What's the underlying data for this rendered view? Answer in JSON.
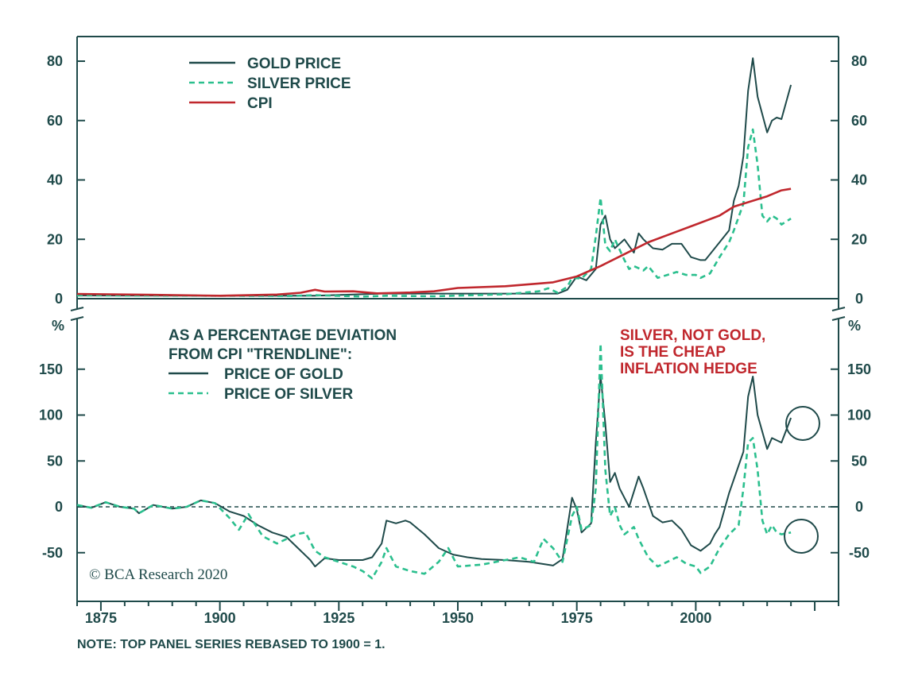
{
  "colors": {
    "axis": "#1f4a4a",
    "gold": "#1f4a4a",
    "silver": "#2bbf8e",
    "cpi": "#c0272d",
    "annotation": "#c0272d"
  },
  "note": "NOTE: TOP PANEL SERIES REBASED TO 1900 = 1.",
  "credit": "© BCA Research 2020",
  "chart_data": [
    {
      "type": "line",
      "xlim": [
        1870,
        2030
      ],
      "ylim": [
        0,
        85
      ],
      "yticks": [
        "0",
        "20",
        "40",
        "60",
        "80"
      ],
      "xticks": [
        "1875",
        "1900",
        "1925",
        "1950",
        "1975",
        "2000"
      ],
      "legend": [
        "GOLD PRICE",
        "SILVER PRICE",
        "CPI"
      ],
      "legend_position": "top-left",
      "series": [
        {
          "name": "GOLD PRICE",
          "style": "solid",
          "points": [
            [
              1870,
              1.1
            ],
            [
              1900,
              1
            ],
            [
              1920,
              1
            ],
            [
              1934,
              1.7
            ],
            [
              1960,
              1.7
            ],
            [
              1971,
              1.7
            ],
            [
              1973,
              3
            ],
            [
              1975,
              7.5
            ],
            [
              1977,
              6.2
            ],
            [
              1979,
              10
            ],
            [
              1980,
              25
            ],
            [
              1981,
              28
            ],
            [
              1982,
              20
            ],
            [
              1983,
              17
            ],
            [
              1985,
              20
            ],
            [
              1987,
              15.5
            ],
            [
              1988,
              22
            ],
            [
              1989,
              20
            ],
            [
              1991,
              17
            ],
            [
              1993,
              16.5
            ],
            [
              1995,
              18.5
            ],
            [
              1997,
              18.5
            ],
            [
              1999,
              14
            ],
            [
              2001,
              13
            ],
            [
              2002,
              13
            ],
            [
              2005,
              19
            ],
            [
              2007,
              23
            ],
            [
              2008,
              33
            ],
            [
              2009,
              38
            ],
            [
              2010,
              48
            ],
            [
              2011,
              70
            ],
            [
              2012,
              81
            ],
            [
              2013,
              68
            ],
            [
              2015,
              56
            ],
            [
              2016,
              60
            ],
            [
              2017,
              61
            ],
            [
              2018,
              60.5
            ],
            [
              2020,
              72
            ]
          ]
        },
        {
          "name": "SILVER PRICE",
          "style": "dashed",
          "points": [
            [
              1870,
              1.1
            ],
            [
              1900,
              1
            ],
            [
              1915,
              0.9
            ],
            [
              1920,
              1.2
            ],
            [
              1930,
              0.7
            ],
            [
              1935,
              1
            ],
            [
              1945,
              0.8
            ],
            [
              1960,
              1.5
            ],
            [
              1967,
              2.5
            ],
            [
              1969,
              3.5
            ],
            [
              1971,
              2
            ],
            [
              1973,
              4
            ],
            [
              1974,
              7
            ],
            [
              1976,
              6.8
            ],
            [
              1978,
              10
            ],
            [
              1979,
              21
            ],
            [
              1980,
              34
            ],
            [
              1981,
              18
            ],
            [
              1982,
              16
            ],
            [
              1983,
              20
            ],
            [
              1985,
              13
            ],
            [
              1986,
              10
            ],
            [
              1987,
              11
            ],
            [
              1989,
              9.5
            ],
            [
              1990,
              11
            ],
            [
              1992,
              7
            ],
            [
              1994,
              8
            ],
            [
              1996,
              9
            ],
            [
              1998,
              8
            ],
            [
              2000,
              8
            ],
            [
              2001,
              7
            ],
            [
              2003,
              8.5
            ],
            [
              2005,
              14
            ],
            [
              2007,
              19
            ],
            [
              2008,
              23
            ],
            [
              2010,
              32
            ],
            [
              2011,
              51
            ],
            [
              2012,
              57
            ],
            [
              2013,
              45
            ],
            [
              2014,
              28
            ],
            [
              2015,
              26
            ],
            [
              2016,
              28
            ],
            [
              2017,
              27
            ],
            [
              2018,
              25
            ],
            [
              2020,
              27
            ]
          ]
        },
        {
          "name": "CPI",
          "style": "solid",
          "points": [
            [
              1870,
              1.6
            ],
            [
              1885,
              1.3
            ],
            [
              1900,
              1
            ],
            [
              1912,
              1.4
            ],
            [
              1917,
              2
            ],
            [
              1920,
              3
            ],
            [
              1922,
              2.4
            ],
            [
              1928,
              2.5
            ],
            [
              1933,
              1.8
            ],
            [
              1940,
              2.1
            ],
            [
              1945,
              2.5
            ],
            [
              1950,
              3.6
            ],
            [
              1960,
              4.2
            ],
            [
              1970,
              5.5
            ],
            [
              1975,
              7.5
            ],
            [
              1980,
              11
            ],
            [
              1985,
              15
            ],
            [
              1990,
              19
            ],
            [
              1995,
              22
            ],
            [
              2000,
              25
            ],
            [
              2005,
              28
            ],
            [
              2008,
              31
            ],
            [
              2010,
              32
            ],
            [
              2015,
              34.5
            ],
            [
              2018,
              36.5
            ],
            [
              2020,
              37
            ]
          ]
        }
      ]
    },
    {
      "type": "line",
      "xlim": [
        1870,
        2030
      ],
      "ylim": [
        -105,
        205
      ],
      "yticks": [
        "-50",
        "0",
        "50",
        "100",
        "150"
      ],
      "yunit": "%",
      "legend_title": [
        "AS A PERCENTAGE DEVIATION",
        "FROM CPI \"TRENDLINE\":"
      ],
      "legend": [
        "PRICE OF GOLD",
        "PRICE OF SILVER"
      ],
      "legend_position": "top-left",
      "annotation": [
        "SILVER, NOT GOLD,",
        "IS THE CHEAP",
        "INFLATION HEDGE"
      ],
      "zero_line": "dashed",
      "series": [
        {
          "name": "PRICE OF GOLD",
          "style": "solid",
          "points": [
            [
              1870,
              2
            ],
            [
              1873,
              -1
            ],
            [
              1876,
              5
            ],
            [
              1879,
              0
            ],
            [
              1882,
              -2
            ],
            [
              1883,
              -7
            ],
            [
              1886,
              2
            ],
            [
              1890,
              -2
            ],
            [
              1893,
              0
            ],
            [
              1896,
              7
            ],
            [
              1899,
              4
            ],
            [
              1902,
              -5
            ],
            [
              1905,
              -10
            ],
            [
              1908,
              -20
            ],
            [
              1911,
              -28
            ],
            [
              1914,
              -33
            ],
            [
              1917,
              -48
            ],
            [
              1919,
              -58
            ],
            [
              1920,
              -65
            ],
            [
              1922,
              -56
            ],
            [
              1925,
              -58
            ],
            [
              1930,
              -58
            ],
            [
              1932,
              -55
            ],
            [
              1934,
              -40
            ],
            [
              1935,
              -15
            ],
            [
              1937,
              -18
            ],
            [
              1939,
              -15
            ],
            [
              1940,
              -17
            ],
            [
              1943,
              -30
            ],
            [
              1946,
              -45
            ],
            [
              1949,
              -52
            ],
            [
              1952,
              -55
            ],
            [
              1955,
              -57
            ],
            [
              1960,
              -58
            ],
            [
              1965,
              -60
            ],
            [
              1970,
              -64
            ],
            [
              1972,
              -57
            ],
            [
              1974,
              10
            ],
            [
              1975,
              -3
            ],
            [
              1976,
              -28
            ],
            [
              1978,
              -18
            ],
            [
              1979,
              70
            ],
            [
              1980,
              143
            ],
            [
              1981,
              90
            ],
            [
              1982,
              27
            ],
            [
              1983,
              37
            ],
            [
              1984,
              20
            ],
            [
              1986,
              0
            ],
            [
              1988,
              33
            ],
            [
              1989,
              20
            ],
            [
              1991,
              -10
            ],
            [
              1993,
              -17
            ],
            [
              1995,
              -15
            ],
            [
              1997,
              -25
            ],
            [
              1999,
              -42
            ],
            [
              2001,
              -48
            ],
            [
              2003,
              -40
            ],
            [
              2004,
              -30
            ],
            [
              2005,
              -22
            ],
            [
              2007,
              15
            ],
            [
              2009,
              45
            ],
            [
              2010,
              60
            ],
            [
              2011,
              120
            ],
            [
              2012,
              142
            ],
            [
              2013,
              100
            ],
            [
              2015,
              63
            ],
            [
              2016,
              75
            ],
            [
              2018,
              70
            ],
            [
              2020,
              97
            ]
          ]
        },
        {
          "name": "PRICE OF SILVER",
          "style": "dashed",
          "points": [
            [
              1870,
              2
            ],
            [
              1873,
              -1
            ],
            [
              1876,
              5
            ],
            [
              1879,
              0
            ],
            [
              1882,
              -2
            ],
            [
              1883,
              -7
            ],
            [
              1886,
              2
            ],
            [
              1890,
              -2
            ],
            [
              1893,
              0
            ],
            [
              1896,
              7
            ],
            [
              1899,
              4
            ],
            [
              1902,
              -12
            ],
            [
              1904,
              -25
            ],
            [
              1906,
              -8
            ],
            [
              1909,
              -32
            ],
            [
              1912,
              -40
            ],
            [
              1914,
              -35
            ],
            [
              1916,
              -30
            ],
            [
              1918,
              -28
            ],
            [
              1920,
              -48
            ],
            [
              1922,
              -55
            ],
            [
              1925,
              -60
            ],
            [
              1928,
              -65
            ],
            [
              1930,
              -70
            ],
            [
              1932,
              -78
            ],
            [
              1934,
              -60
            ],
            [
              1935,
              -45
            ],
            [
              1937,
              -65
            ],
            [
              1940,
              -70
            ],
            [
              1943,
              -73
            ],
            [
              1946,
              -60
            ],
            [
              1948,
              -45
            ],
            [
              1950,
              -65
            ],
            [
              1955,
              -63
            ],
            [
              1960,
              -58
            ],
            [
              1963,
              -55
            ],
            [
              1966,
              -60
            ],
            [
              1968,
              -35
            ],
            [
              1970,
              -45
            ],
            [
              1972,
              -60
            ],
            [
              1974,
              -10
            ],
            [
              1975,
              0
            ],
            [
              1976,
              -25
            ],
            [
              1978,
              -20
            ],
            [
              1979,
              20
            ],
            [
              1980,
              178
            ],
            [
              1981,
              40
            ],
            [
              1982,
              -10
            ],
            [
              1983,
              0
            ],
            [
              1984,
              -20
            ],
            [
              1985,
              -30
            ],
            [
              1987,
              -22
            ],
            [
              1988,
              -35
            ],
            [
              1989,
              -45
            ],
            [
              1990,
              -55
            ],
            [
              1992,
              -65
            ],
            [
              1994,
              -60
            ],
            [
              1996,
              -55
            ],
            [
              1998,
              -62
            ],
            [
              2000,
              -65
            ],
            [
              2001,
              -72
            ],
            [
              2003,
              -65
            ],
            [
              2005,
              -45
            ],
            [
              2007,
              -30
            ],
            [
              2009,
              -20
            ],
            [
              2010,
              20
            ],
            [
              2011,
              70
            ],
            [
              2012,
              75
            ],
            [
              2013,
              40
            ],
            [
              2014,
              -15
            ],
            [
              2015,
              -30
            ],
            [
              2016,
              -20
            ],
            [
              2017,
              -28
            ],
            [
              2018,
              -30
            ],
            [
              2020,
              -28
            ]
          ]
        }
      ]
    }
  ]
}
